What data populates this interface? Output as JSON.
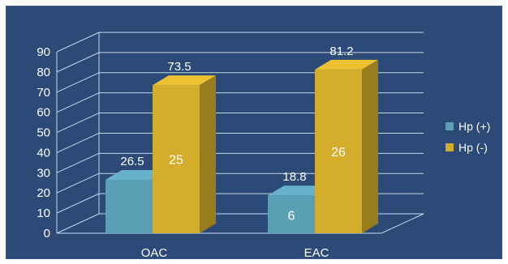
{
  "chart_data": {
    "type": "bar",
    "style": "3d-column",
    "categories": [
      "OAC",
      "EAC"
    ],
    "series": [
      {
        "name": "Hp (+)",
        "color": "#5b9fb5",
        "values": [
          26.5,
          18.8
        ],
        "inner_labels": [
          "",
          "6"
        ]
      },
      {
        "name": "Hp (-)",
        "color": "#d3ad2b",
        "values": [
          73.5,
          81.2
        ],
        "inner_labels": [
          "25",
          "26"
        ]
      }
    ],
    "ylim": [
      0,
      90
    ],
    "yticks": [
      0,
      10,
      20,
      30,
      40,
      50,
      60,
      70,
      80,
      90
    ],
    "grid": true,
    "legend": "right",
    "background": "#2b4a78",
    "title": "",
    "xlabel": "",
    "ylabel": ""
  }
}
